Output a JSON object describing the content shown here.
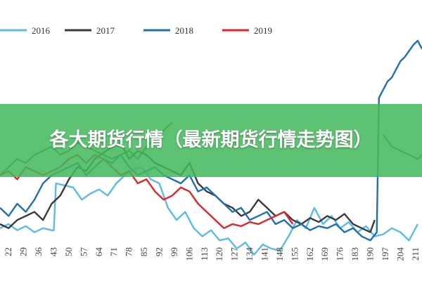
{
  "banner": {
    "title": "各大期货行情（最新期货行情走势图）"
  },
  "colors": {
    "series_2016": "#5bbbea",
    "series_2017": "#3a3a3a",
    "series_2018": "#1f6fb5",
    "series_2019": "#e0242a",
    "banner": "#43b85c"
  },
  "chart_data": {
    "type": "line",
    "title": "",
    "xlabel": "",
    "ylabel": "",
    "legend_position": "top",
    "grid": false,
    "x_ticks": [
      "22",
      "29",
      "36",
      "43",
      "50",
      "57",
      "64",
      "71",
      "78",
      "85",
      "92",
      "99",
      "106",
      "113",
      "120",
      "127",
      "134",
      "141",
      "148",
      "155",
      "162",
      "169",
      "176",
      "183",
      "190",
      "197",
      "204",
      "211"
    ],
    "xlim": [
      18,
      214
    ],
    "ylim": [
      0,
      100
    ],
    "y_axis_shown": false,
    "series": [
      {
        "name": "2016",
        "color": "#5bbbea",
        "x": [
          18,
          22,
          26,
          30,
          34,
          38,
          42,
          43,
          44,
          48,
          52,
          56,
          60,
          64,
          68,
          72,
          76,
          80,
          84,
          88,
          92,
          96,
          100,
          104,
          108,
          112,
          116,
          120,
          124,
          128,
          132,
          136,
          140,
          144,
          148,
          152,
          156,
          160,
          164,
          168,
          172,
          176,
          180,
          184,
          188,
          192,
          196,
          200,
          204,
          208,
          212
        ],
        "y": [
          8,
          10,
          7,
          9,
          6,
          8,
          7,
          7,
          30,
          29,
          28,
          22,
          25,
          27,
          24,
          30,
          34,
          37,
          38,
          32,
          30,
          18,
          12,
          16,
          8,
          4,
          7,
          2,
          3,
          -2,
          1,
          -5,
          0,
          -2,
          -3,
          4,
          12,
          8,
          18,
          10,
          14,
          8,
          11,
          6,
          9,
          4,
          5,
          8,
          6,
          2,
          10
        ]
      },
      {
        "name": "2017",
        "color": "#3a3a3a",
        "x": [
          18,
          22,
          26,
          30,
          34,
          38,
          42,
          46,
          50,
          54,
          58,
          62,
          66,
          70,
          74,
          78,
          82,
          86,
          90,
          94,
          98,
          102,
          106,
          110,
          114,
          118,
          122,
          126,
          130,
          134,
          138,
          142,
          146,
          150,
          154,
          158,
          162,
          166,
          170,
          174,
          178,
          182,
          186,
          190,
          192
        ],
        "y": [
          10,
          8,
          12,
          14,
          16,
          12,
          20,
          24,
          32,
          38,
          36,
          42,
          45,
          48,
          50,
          42,
          46,
          44,
          40,
          38,
          36,
          34,
          40,
          30,
          26,
          24,
          20,
          18,
          14,
          16,
          22,
          18,
          14,
          16,
          12,
          10,
          13,
          11,
          14,
          12,
          15,
          10,
          8,
          6,
          12
        ]
      },
      {
        "name": "2018",
        "color": "#1f6fb5",
        "x": [
          18,
          22,
          26,
          30,
          34,
          38,
          42,
          46,
          50,
          54,
          58,
          62,
          66,
          70,
          74,
          78,
          82,
          86,
          90,
          94,
          98,
          102,
          106,
          110,
          114,
          118,
          122,
          126,
          130,
          134,
          138,
          142,
          146,
          150,
          154,
          158,
          162,
          166,
          170,
          174,
          178,
          182,
          186,
          190,
          193,
          194,
          196,
          198,
          200,
          202,
          204,
          206,
          208,
          210,
          212,
          214
        ],
        "y": [
          18,
          14,
          20,
          16,
          22,
          30,
          34,
          36,
          38,
          40,
          34,
          38,
          42,
          40,
          44,
          38,
          34,
          36,
          38,
          34,
          32,
          30,
          34,
          26,
          28,
          24,
          20,
          16,
          18,
          12,
          14,
          16,
          10,
          12,
          8,
          10,
          7,
          9,
          8,
          10,
          6,
          8,
          4,
          2,
          6,
          72,
          76,
          80,
          82,
          86,
          90,
          92,
          95,
          98,
          100,
          96
        ]
      },
      {
        "name": "2019",
        "color": "#e0242a",
        "x": [
          18,
          22,
          26,
          30,
          34,
          38,
          42,
          46,
          50,
          54,
          58,
          62,
          66,
          70,
          74,
          78,
          82,
          86,
          90,
          94,
          98,
          102,
          106,
          110,
          114,
          118,
          122,
          126,
          130,
          134,
          138,
          142,
          146,
          150,
          154
        ],
        "y": [
          34,
          36,
          32,
          38,
          36,
          34,
          36,
          38,
          42,
          44,
          40,
          44,
          42,
          38,
          34,
          36,
          30,
          32,
          26,
          22,
          24,
          28,
          26,
          20,
          16,
          12,
          8,
          10,
          9,
          11,
          10,
          12,
          14,
          16,
          10
        ]
      }
    ],
    "trailing_green_series": {
      "color": "#2f8a3a",
      "x": [
        18,
        22,
        26,
        30,
        34,
        38,
        42,
        46,
        50,
        54,
        58,
        62,
        66,
        70,
        74,
        78,
        82,
        86,
        90,
        94,
        98,
        196,
        200,
        204,
        208,
        212,
        214
      ],
      "y": [
        34,
        38,
        42,
        40,
        44,
        46,
        48,
        44,
        46,
        50,
        48,
        46,
        44,
        42,
        44,
        46,
        42,
        48,
        52,
        56,
        60,
        54,
        48,
        46,
        44,
        42,
        44
      ]
    }
  }
}
